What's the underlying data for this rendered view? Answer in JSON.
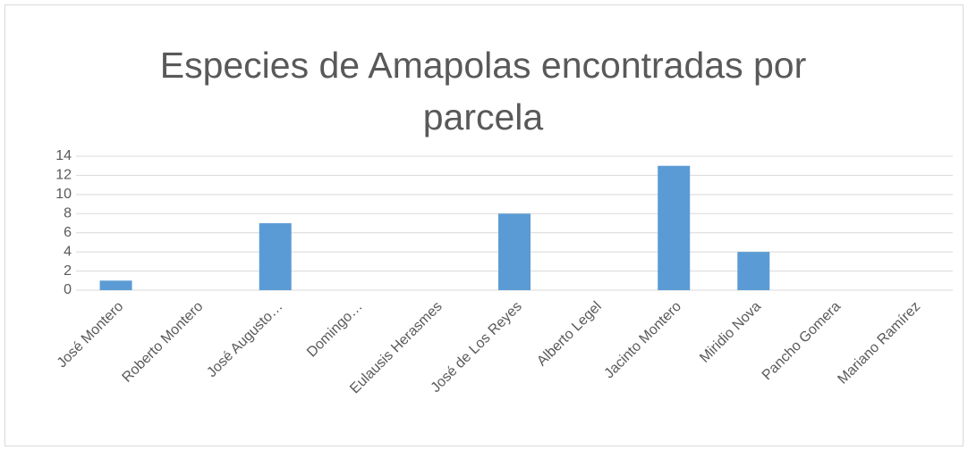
{
  "chart_data": {
    "type": "bar",
    "title": "Especies de Amapolas encontradas por parcela",
    "categories": [
      "José Montero",
      "Roberto Montero",
      "José Augusto…",
      "Domingo…",
      "Eulausis Herasmes",
      "José de Los Reyes",
      "Alberto Legel",
      "Jacinto Montero",
      "Miridio Nova",
      "Pancho Gomera",
      "Mariano Ramírez"
    ],
    "values": [
      1,
      0,
      7,
      0,
      0,
      8,
      0,
      13,
      4,
      0,
      0
    ],
    "color": "#5b9bd5",
    "ylim": [
      0,
      14
    ],
    "yticks": [
      0,
      2,
      4,
      6,
      8,
      10,
      12,
      14
    ],
    "grid": true
  }
}
